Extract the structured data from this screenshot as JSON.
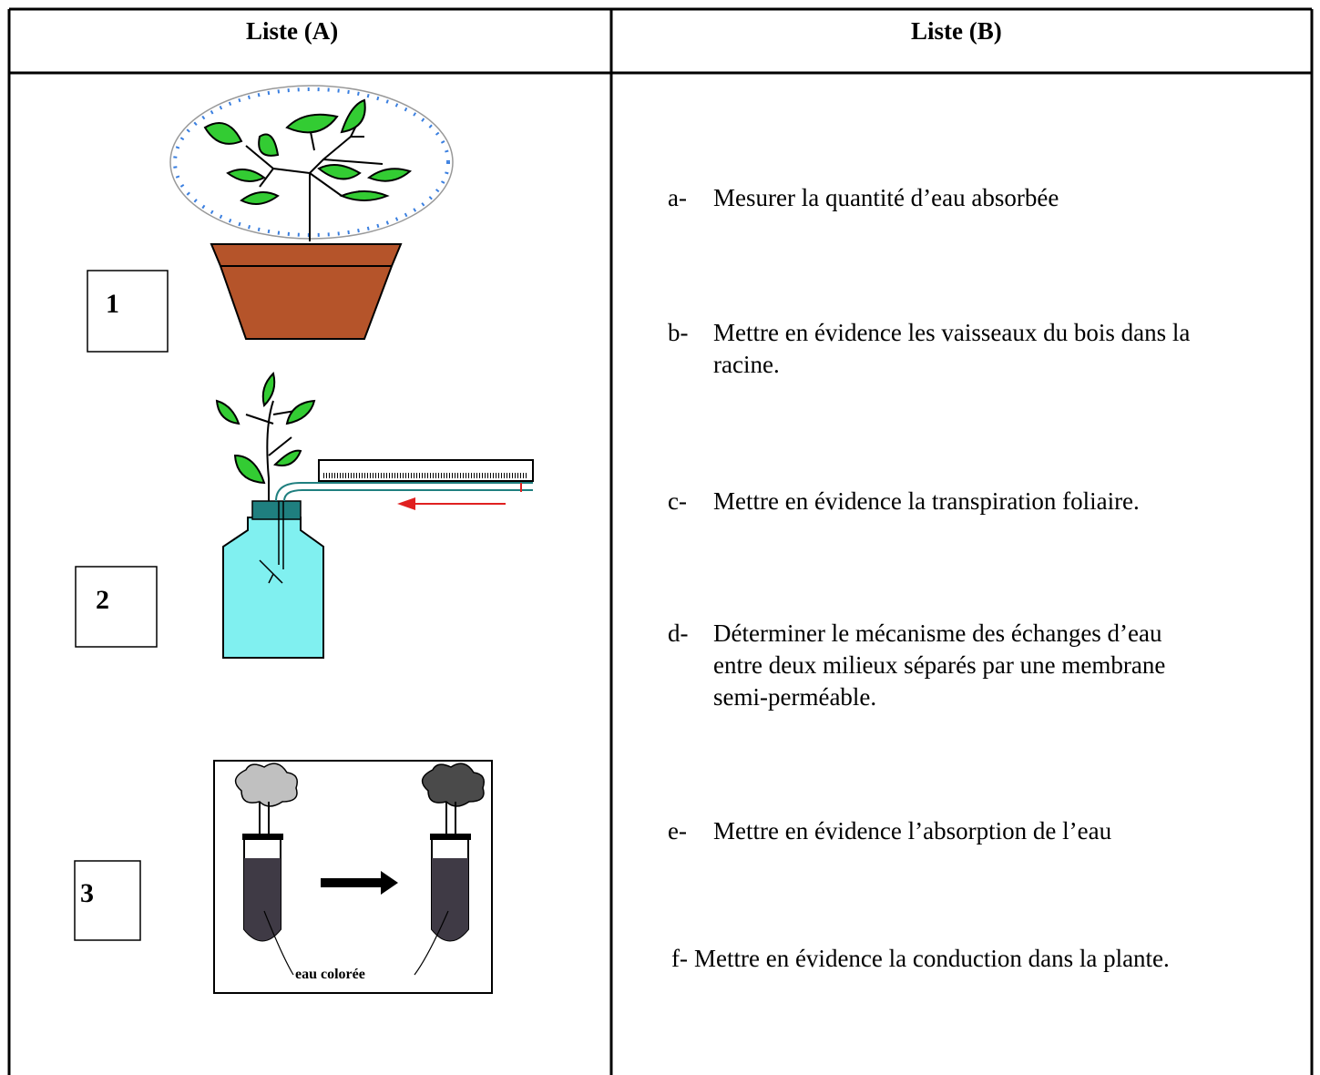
{
  "table": {
    "headers": [
      "Liste (A)",
      "Liste (B)"
    ],
    "list_a": [
      {
        "number": "1"
      },
      {
        "number": "2"
      },
      {
        "number": "3",
        "label": "eau colorée"
      }
    ],
    "list_b": [
      {
        "marker": "a-",
        "lines": [
          "Mesurer la quantité d’eau absorbée"
        ]
      },
      {
        "marker": "b-",
        "lines": [
          "Mettre en évidence les vaisseaux du bois dans la",
          "racine."
        ]
      },
      {
        "marker": "c-",
        "lines": [
          "Mettre en évidence la transpiration foliaire."
        ]
      },
      {
        "marker": "d-",
        "lines": [
          "Déterminer le mécanisme des échanges d’eau",
          "entre deux milieux séparés par une membrane",
          "semi-perméable."
        ]
      },
      {
        "marker": "e-",
        "lines": [
          "Mettre en évidence l’absorption de l’eau"
        ]
      },
      {
        "marker": "f-",
        "lines": [
          "Mettre en évidence la conduction dans la plante."
        ]
      }
    ]
  }
}
